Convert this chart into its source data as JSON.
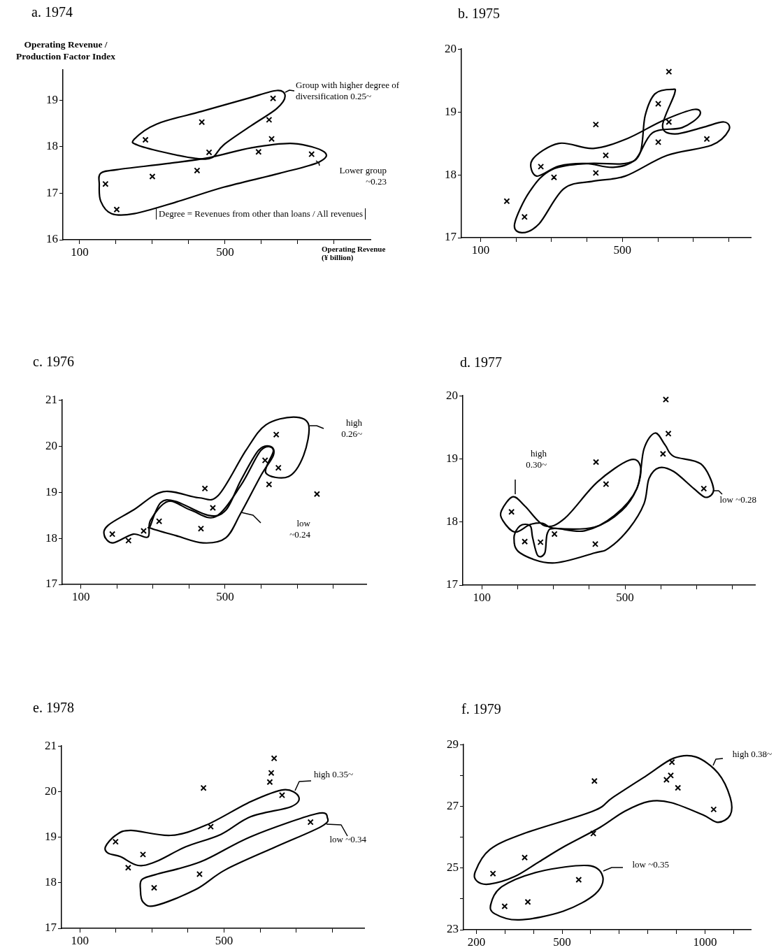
{
  "chart_data": [
    {
      "type": "scatter",
      "title": "a. 1974",
      "xlabel": "Operating Revenue (¥ billion)",
      "ylabel": "Operating Revenue / Production Factor Index",
      "marker": "cross",
      "color": "#000000",
      "x": [
        171,
        202,
        281,
        300,
        436,
        423,
        456,
        592,
        621,
        628,
        632,
        738
      ],
      "values": [
        17.2,
        16.65,
        18.15,
        17.36,
        18.53,
        17.49,
        17.88,
        17.89,
        18.58,
        18.17,
        19.04,
        17.84
      ],
      "xlim": [
        54,
        900
      ],
      "xticks": [
        100,
        {
          "value": 200,
          "label": null
        },
        {
          "value": 300,
          "label": null
        },
        {
          "value": 400,
          "label": null
        },
        500,
        {
          "value": 600,
          "label": null
        },
        {
          "value": 700,
          "label": null
        },
        {
          "value": 800,
          "label": null
        }
      ],
      "ylim": [
        16,
        19.65
      ],
      "yticks": [
        16,
        17,
        18,
        19
      ],
      "annotations": [
        "Group with higher degree of diversification 0.25~",
        "Lower group ~0.23",
        "Degree = Revenues from other than loans / All revenues"
      ]
    },
    {
      "type": "scatter",
      "title": "b. 1975",
      "marker": "cross",
      "color": "#000000",
      "x": [
        174,
        224,
        270,
        307,
        425,
        425,
        453,
        601,
        601,
        631,
        631,
        738
      ],
      "values": [
        17.58,
        17.33,
        18.13,
        17.96,
        18.8,
        18.03,
        18.31,
        19.13,
        18.52,
        19.64,
        18.84,
        18.57
      ],
      "xlim": [
        46,
        862
      ],
      "xticks": [
        100,
        {
          "value": 200,
          "label": null
        },
        {
          "value": 300,
          "label": null
        },
        {
          "value": 400,
          "label": null
        },
        500,
        {
          "value": 600,
          "label": null
        },
        {
          "value": 700,
          "label": null
        },
        {
          "value": 800,
          "label": null
        }
      ],
      "ylim": [
        17,
        20
      ],
      "yticks": [
        17,
        18,
        19,
        20
      ]
    },
    {
      "type": "scatter",
      "title": "c. 1976",
      "marker": "cross",
      "color": "#000000",
      "x": [
        187,
        232,
        274,
        317,
        433,
        444,
        466,
        611,
        642,
        648,
        622,
        755
      ],
      "values": [
        18.09,
        17.95,
        18.16,
        18.37,
        18.21,
        19.08,
        18.66,
        19.69,
        20.25,
        19.53,
        19.17,
        18.96
      ],
      "xlim": [
        48,
        892
      ],
      "xticks": [
        100,
        {
          "value": 200,
          "label": null
        },
        {
          "value": 300,
          "label": null
        },
        {
          "value": 400,
          "label": null
        },
        500,
        {
          "value": 600,
          "label": null
        },
        {
          "value": 700,
          "label": null
        },
        {
          "value": 800,
          "label": null
        }
      ],
      "ylim": [
        17,
        21
      ],
      "yticks": [
        17,
        18,
        19,
        20,
        21
      ],
      "annotations": [
        "high 0.26~",
        "low ~0.24"
      ]
    },
    {
      "type": "scatter",
      "title": "d. 1977",
      "marker": "cross",
      "color": "#000000",
      "x": [
        183,
        220,
        264,
        303,
        417,
        419,
        447,
        606,
        614,
        621,
        720
      ],
      "values": [
        18.16,
        17.69,
        17.68,
        17.81,
        17.65,
        18.95,
        18.6,
        19.08,
        19.94,
        19.4,
        18.53
      ],
      "xlim": [
        47,
        863
      ],
      "xticks": [
        100,
        {
          "value": 200,
          "label": null
        },
        {
          "value": 300,
          "label": null
        },
        {
          "value": 400,
          "label": null
        },
        500,
        {
          "value": 600,
          "label": null
        },
        {
          "value": 700,
          "label": null
        },
        {
          "value": 800,
          "label": null
        }
      ],
      "ylim": [
        17,
        20
      ],
      "yticks": [
        17,
        18,
        19,
        20
      ],
      "annotations": [
        "high 0.30~",
        "low ~0.28"
      ]
    },
    {
      "type": "scatter",
      "title": "e. 1978",
      "marker": "cross",
      "color": "#000000",
      "x": [
        199,
        234,
        275,
        306,
        432,
        443,
        463,
        627,
        631,
        639,
        661,
        740
      ],
      "values": [
        18.9,
        18.33,
        18.62,
        17.89,
        18.19,
        20.08,
        19.23,
        20.21,
        20.41,
        20.73,
        19.92,
        19.33
      ],
      "xlim": [
        49,
        889
      ],
      "xticks": [
        100,
        {
          "value": 200,
          "label": null
        },
        {
          "value": 300,
          "label": null
        },
        {
          "value": 400,
          "label": null
        },
        500,
        {
          "value": 600,
          "label": null
        },
        {
          "value": 700,
          "label": null
        },
        {
          "value": 800,
          "label": null
        }
      ],
      "ylim": [
        17,
        21
      ],
      "yticks": [
        17,
        18,
        19,
        20,
        21
      ],
      "annotations": [
        "high 0.35~",
        "low ~0.34"
      ]
    },
    {
      "type": "scatter",
      "title": "f. 1979",
      "marker": "cross",
      "color": "#000000",
      "x": [
        258,
        299,
        369,
        380,
        558,
        609,
        613,
        865,
        880,
        884,
        905,
        1030
      ],
      "values": [
        24.82,
        23.76,
        25.34,
        23.9,
        24.62,
        26.12,
        27.82,
        27.86,
        28.0,
        28.43,
        27.6,
        26.9
      ],
      "xlim": [
        155,
        1160
      ],
      "xticks": [
        200,
        {
          "value": 300,
          "label": null
        },
        {
          "value": 400,
          "label": null
        },
        500,
        {
          "value": 600,
          "label": null
        },
        {
          "value": 700,
          "label": null
        },
        {
          "value": 800,
          "label": null
        },
        {
          "value": 900,
          "label": null
        },
        1000,
        {
          "value": 1100,
          "label": null
        }
      ],
      "ylim": [
        23,
        29
      ],
      "yticks": [
        23,
        {
          "value": 24,
          "label": null
        },
        25,
        {
          "value": 26,
          "label": null
        },
        27,
        {
          "value": 28,
          "label": null
        },
        29
      ],
      "annotations": [
        "high 0.38~",
        "low ~0.35"
      ]
    }
  ]
}
